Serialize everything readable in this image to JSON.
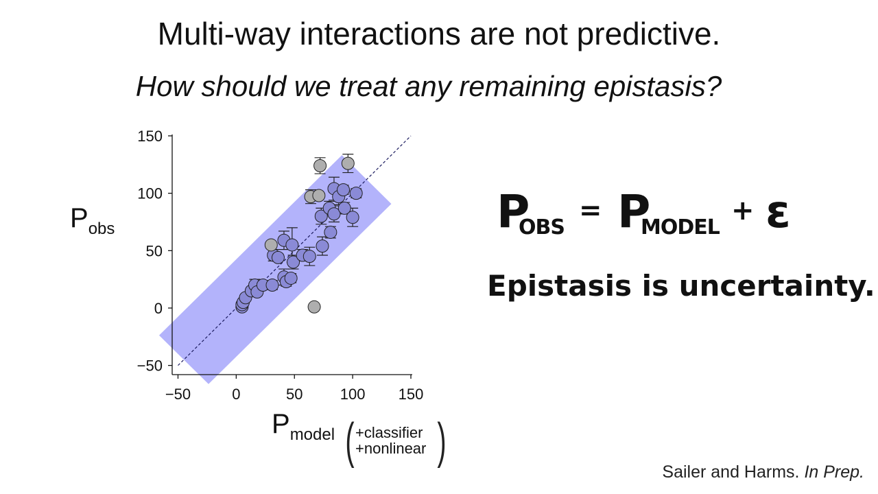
{
  "slide": {
    "title": "Multi-way interactions are not predictive.",
    "subtitle": "How should we treat any remaining epistasis?",
    "equation": {
      "lhs_symbol": "P",
      "lhs_subscript": "OBS",
      "equals": "=",
      "rhs_symbol": "P",
      "rhs_subscript": "MODEL",
      "plus": "+",
      "error_symbol": "ε"
    },
    "statement": "Epistasis is uncertainty.",
    "citation_authors": "Sailer and Harms.",
    "citation_status": "In Prep."
  },
  "chart_data": {
    "type": "scatter",
    "ylabel_main": "P",
    "ylabel_sub": "obs",
    "xlabel_main": "P",
    "xlabel_sub": "model",
    "xlabel_annotation": [
      "+classifier",
      "+nonlinear"
    ],
    "xlim": [
      -55,
      150
    ],
    "ylim": [
      -58,
      150
    ],
    "x_ticks": [
      -50,
      0,
      50,
      100,
      150
    ],
    "y_ticks": [
      -50,
      0,
      50,
      100,
      150
    ],
    "x_tick_labels": [
      "−50",
      "0",
      "50",
      "100",
      "150"
    ],
    "y_tick_labels": [
      "−50",
      "0",
      "50",
      "100",
      "150"
    ],
    "grid": false,
    "reference_line": {
      "style": "dashed",
      "slope": 1,
      "intercept": 0,
      "color": "#1a1a5e"
    },
    "uncertainty_band": {
      "half_width": 30,
      "color": "#b3b3fb"
    },
    "colors": {
      "classified": "#8a8ad6",
      "excluded": "#aeaeae",
      "marker_edge": "#222222"
    },
    "series": [
      {
        "group": "classified",
        "points": [
          {
            "x": 5,
            "y": 1,
            "err": 0
          },
          {
            "x": 5,
            "y": 3,
            "err": 0
          },
          {
            "x": 6,
            "y": 5,
            "err": 0
          },
          {
            "x": 8,
            "y": 9,
            "err": 0
          },
          {
            "x": 13,
            "y": 15,
            "err": 0
          },
          {
            "x": 16,
            "y": 20,
            "err": 5
          },
          {
            "x": 18,
            "y": 14,
            "err": 3
          },
          {
            "x": 23,
            "y": 20,
            "err": 0
          },
          {
            "x": 31,
            "y": 20,
            "err": 4
          },
          {
            "x": 32,
            "y": 46,
            "err": 5
          },
          {
            "x": 36,
            "y": 44,
            "err": 3
          },
          {
            "x": 41,
            "y": 27,
            "err": 7
          },
          {
            "x": 41,
            "y": 59,
            "err": 8
          },
          {
            "x": 43,
            "y": 23,
            "err": 4
          },
          {
            "x": 47,
            "y": 26,
            "err": 4
          },
          {
            "x": 48,
            "y": 55,
            "err": 15
          },
          {
            "x": 49,
            "y": 40,
            "err": 6
          },
          {
            "x": 57,
            "y": 46,
            "err": 5
          },
          {
            "x": 63,
            "y": 45,
            "err": 8
          },
          {
            "x": 73,
            "y": 80,
            "err": 7
          },
          {
            "x": 74,
            "y": 54,
            "err": 8
          },
          {
            "x": 80,
            "y": 87,
            "err": 6
          },
          {
            "x": 81,
            "y": 66,
            "err": 5
          },
          {
            "x": 84,
            "y": 104,
            "err": 10
          },
          {
            "x": 84,
            "y": 82,
            "err": 7
          },
          {
            "x": 88,
            "y": 97,
            "err": 7
          },
          {
            "x": 92,
            "y": 103,
            "err": 4
          },
          {
            "x": 93,
            "y": 87,
            "err": 5
          },
          {
            "x": 100,
            "y": 79,
            "err": 8
          },
          {
            "x": 103,
            "y": 100,
            "err": 4
          }
        ]
      },
      {
        "group": "excluded",
        "points": [
          {
            "x": 30,
            "y": 55,
            "err": 0
          },
          {
            "x": 64,
            "y": 97,
            "err": 6
          },
          {
            "x": 67,
            "y": 1,
            "err": 0
          },
          {
            "x": 71,
            "y": 98,
            "err": 0
          },
          {
            "x": 72,
            "y": 124,
            "err": 7
          },
          {
            "x": 96,
            "y": 126,
            "err": 8
          }
        ]
      }
    ]
  }
}
